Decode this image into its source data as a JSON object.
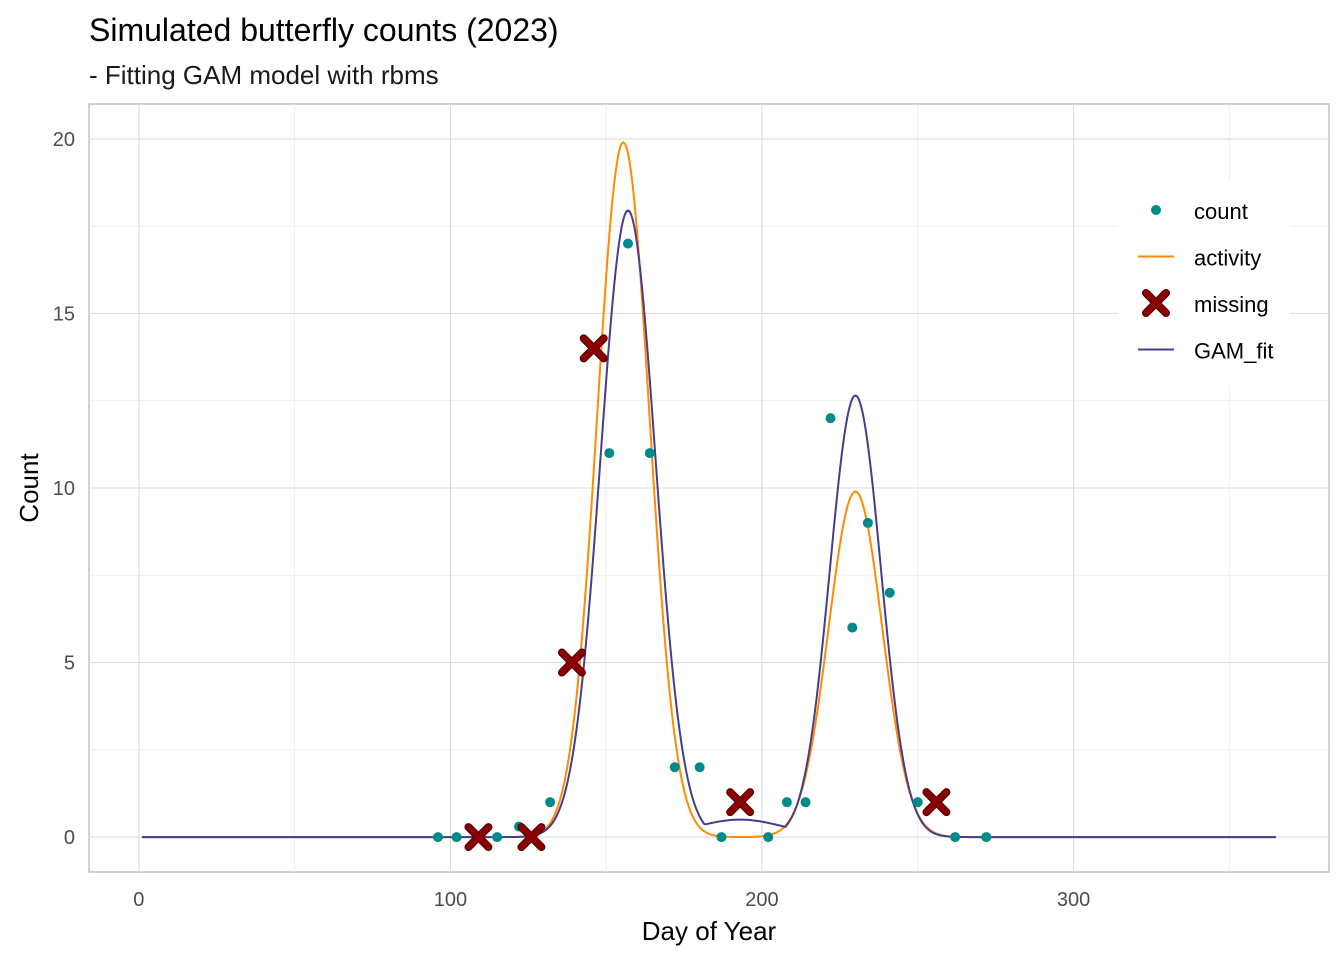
{
  "chart_data": {
    "type": "line",
    "title": "Simulated butterfly counts (2023)",
    "subtitle": "- Fitting GAM model with rbms",
    "xlabel": "Day of Year",
    "ylabel": "Count",
    "xlim": [
      -16,
      382
    ],
    "ylim": [
      -1,
      21
    ],
    "x_ticks": [
      0,
      100,
      200,
      300
    ],
    "y_ticks": [
      0,
      5,
      10,
      15,
      20
    ],
    "grid": true,
    "legend_position": "top-right",
    "legend": [
      {
        "key": "count",
        "label": "count",
        "symbol": "point",
        "color": "#008B8B"
      },
      {
        "key": "activity",
        "label": "activity",
        "symbol": "line",
        "color": "#FF8C00"
      },
      {
        "key": "missing",
        "label": "missing",
        "symbol": "cross",
        "color": "#8B0000"
      },
      {
        "key": "gam_fit",
        "label": "GAM_fit",
        "symbol": "line",
        "color": "#483D8B"
      }
    ],
    "count_points": [
      {
        "x": 96,
        "y": 0
      },
      {
        "x": 102,
        "y": 0
      },
      {
        "x": 115,
        "y": 0
      },
      {
        "x": 122,
        "y": 0.3
      },
      {
        "x": 132,
        "y": 1
      },
      {
        "x": 151,
        "y": 11
      },
      {
        "x": 157,
        "y": 17
      },
      {
        "x": 164,
        "y": 11
      },
      {
        "x": 172,
        "y": 2
      },
      {
        "x": 180,
        "y": 2
      },
      {
        "x": 187,
        "y": 0
      },
      {
        "x": 202,
        "y": 0
      },
      {
        "x": 208,
        "y": 1
      },
      {
        "x": 214,
        "y": 1
      },
      {
        "x": 222,
        "y": 12
      },
      {
        "x": 229,
        "y": 6
      },
      {
        "x": 234,
        "y": 9
      },
      {
        "x": 241,
        "y": 7
      },
      {
        "x": 250,
        "y": 1
      },
      {
        "x": 262,
        "y": 0
      },
      {
        "x": 272,
        "y": 0
      }
    ],
    "missing_points": [
      {
        "x": 109,
        "y": 0
      },
      {
        "x": 126,
        "y": 0
      },
      {
        "x": 139,
        "y": 5
      },
      {
        "x": 146,
        "y": 14
      },
      {
        "x": 193,
        "y": 1
      },
      {
        "x": 256,
        "y": 1
      }
    ],
    "activity_curve": {
      "x_range": [
        1,
        365
      ],
      "peaks": [
        {
          "center": 155.5,
          "height": 19.9,
          "sd": 8.4
        },
        {
          "center": 230,
          "height": 9.9,
          "sd": 8.6
        }
      ]
    },
    "gam_fit_curve": {
      "x_range": [
        1,
        365
      ],
      "peaks": [
        {
          "center": 157,
          "height": 17.95,
          "sd": 8.8
        },
        {
          "center": 230,
          "height": 12.65,
          "sd": 8.2
        }
      ],
      "trough_baseline": 0.5,
      "trough_center": 193,
      "trough_sd": 14
    }
  }
}
